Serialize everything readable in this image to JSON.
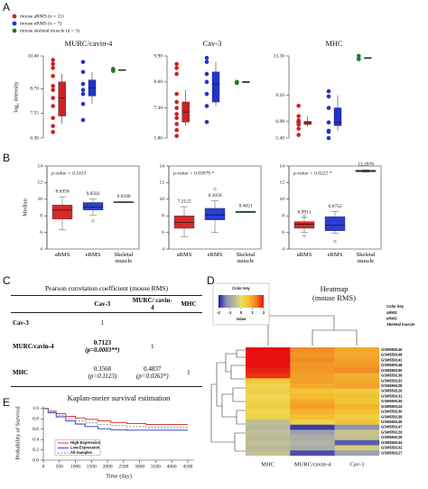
{
  "panel_labels": [
    "A",
    "B",
    "C",
    "D",
    "E"
  ],
  "group_legend": [
    {
      "label": "mouse aRMS (n = 11)",
      "color": "#cc2222"
    },
    {
      "label": "mouse eRMS (n = 7)",
      "color": "#2233cc"
    },
    {
      "label": "mouse skeletal muscle (n = 3)",
      "color": "#1c7a2c"
    }
  ],
  "chart_data": [
    {
      "type": "dotbox",
      "title": "MURC/cavin-4",
      "ylabel": "log₂ intensity",
      "ylim": [
        6.3,
        10.4
      ],
      "yticks": [
        {
          "value": 6.3,
          "label": "6.30"
        },
        {
          "value": 7.55,
          "label": "7.55"
        },
        {
          "value": 8.76,
          "label": "8.76"
        },
        {
          "value": 10.4,
          "label": "10.40"
        }
      ],
      "groups": [
        {
          "color": "#cc2222",
          "values": [
            6.6,
            6.9,
            7.3,
            7.9,
            8.3,
            8.7,
            8.9,
            9.4,
            9.8,
            10.0,
            10.2
          ],
          "box": [
            7.0,
            7.4,
            8.3,
            9.1,
            9.5
          ]
        },
        {
          "color": "#2233cc",
          "values": [
            7.2,
            8.0,
            8.5,
            8.7,
            9.0,
            9.6,
            10.1
          ],
          "box": [
            8.0,
            8.4,
            8.8,
            9.2,
            9.6
          ]
        },
        {
          "color": "#1c7a2c",
          "values": [
            9.65,
            9.75,
            9.7
          ],
          "box": [
            9.7,
            9.68,
            9.7,
            9.72,
            9.7
          ]
        }
      ]
    },
    {
      "type": "dotbox",
      "title": "Cav-3",
      "ylim": [
        5.8,
        9.9
      ],
      "yticks": [
        {
          "value": 5.8,
          "label": "5.80"
        },
        {
          "value": 7.3,
          "label": "7.30"
        },
        {
          "value": 8.6,
          "label": "8.60"
        },
        {
          "value": 9.9,
          "label": "9.90"
        }
      ],
      "groups": [
        {
          "color": "#cc2222",
          "values": [
            5.9,
            6.2,
            6.5,
            6.8,
            7.0,
            7.3,
            7.6,
            8.0,
            9.0,
            9.3,
            9.5
          ],
          "box": [
            6.4,
            6.6,
            7.1,
            7.6,
            8.2
          ]
        },
        {
          "color": "#2233cc",
          "values": [
            6.6,
            7.4,
            8.0,
            8.6,
            9.0,
            9.6,
            9.8
          ],
          "box": [
            7.4,
            7.6,
            8.5,
            9.1,
            9.6
          ]
        },
        {
          "color": "#1c7a2c",
          "values": [
            8.55,
            8.6,
            8.6
          ],
          "box": [
            8.6,
            8.58,
            8.6,
            8.62,
            8.6
          ]
        }
      ]
    },
    {
      "type": "dotbox",
      "title": "MHC",
      "ylim": [
        5.4,
        13.3
      ],
      "yticks": [
        {
          "value": 5.4,
          "label": "5.40"
        },
        {
          "value": 6.98,
          "label": "6.98"
        },
        {
          "value": 9.5,
          "label": "9.50"
        },
        {
          "value": 13.3,
          "label": "13.30"
        }
      ],
      "groups": [
        {
          "color": "#cc2222",
          "values": [
            5.7,
            6.3,
            6.7,
            6.9,
            6.9,
            6.9,
            6.9,
            7.0,
            7.1,
            7.5,
            8.5
          ],
          "box": [
            6.5,
            6.7,
            6.9,
            7.0,
            7.5
          ]
        },
        {
          "color": "#2233cc",
          "values": [
            5.4,
            6.0,
            6.1,
            6.9,
            8.3,
            9.4,
            9.9
          ],
          "box": [
            6.1,
            6.6,
            6.9,
            8.3,
            9.5
          ]
        },
        {
          "color": "#1c7a2c",
          "values": [
            13.3,
            13.0,
            13.0
          ],
          "box": [
            13.1,
            13.05,
            13.1,
            13.15,
            13.1
          ]
        }
      ]
    },
    {
      "type": "box",
      "annotation": "p-value = 0.1013",
      "ylabel": "Median",
      "ylim": [
        4,
        14
      ],
      "yticks": [
        4,
        6,
        8,
        10,
        12,
        14
      ],
      "categories": [
        "aRMS",
        "eRMS",
        "Skeletal muscle"
      ],
      "groups": [
        {
          "color": "#d42a2a",
          "low": 6.3,
          "q1": 7.6,
          "median": 8.6958,
          "median_label": "8.6958",
          "q3": 9.3,
          "high": 10.3,
          "outliers": []
        },
        {
          "color": "#2a3fd4",
          "low": 8.1,
          "q1": 8.7,
          "median": 9.0502,
          "median_label": "9.0502",
          "q3": 9.6,
          "high": 10.0,
          "outliers": [
            7.4
          ]
        },
        {
          "color": "#1c7a2c",
          "low": 9.62,
          "q1": 9.62,
          "median": 9.659,
          "median_label": "9.6590",
          "q3": 9.7,
          "high": 9.7,
          "outliers": []
        }
      ]
    },
    {
      "type": "box",
      "annotation": "p-value = 0.03979 *",
      "ylim": [
        4,
        14
      ],
      "yticks": [
        4,
        6,
        8,
        10,
        12,
        14
      ],
      "categories": [
        "aRMS",
        "eRMS",
        "Skeletal muscle"
      ],
      "groups": [
        {
          "color": "#d42a2a",
          "low": 5.5,
          "q1": 6.5,
          "median": 7.2122,
          "median_label": "7.2122",
          "q3": 8.0,
          "high": 9.1,
          "outliers": []
        },
        {
          "color": "#2a3fd4",
          "low": 6.0,
          "q1": 7.5,
          "median": 8.1056,
          "median_label": "8.1056",
          "q3": 8.9,
          "high": 9.8,
          "outliers": [
            11.2
          ]
        },
        {
          "color": "#1c7a2c",
          "low": 8.44,
          "q1": 8.44,
          "median": 8.4821,
          "median_label": "8.4821",
          "q3": 8.52,
          "high": 8.52,
          "outliers": []
        }
      ]
    },
    {
      "type": "box",
      "annotation": "p-value = 0.0222 *",
      "ylim": [
        4,
        14
      ],
      "yticks": [
        4,
        6,
        8,
        10,
        12,
        14
      ],
      "categories": [
        "aRMS",
        "eRMS",
        "Skeletal muscle"
      ],
      "groups": [
        {
          "color": "#d42a2a",
          "low": 6.0,
          "q1": 6.5,
          "median": 6.9911,
          "median_label": "6.9911",
          "q3": 7.3,
          "high": 7.8,
          "outliers": [
            5.6,
            8.0
          ]
        },
        {
          "color": "#2a3fd4",
          "low": 5.9,
          "q1": 6.2,
          "median": 6.8752,
          "median_label": "6.8752",
          "q3": 7.9,
          "high": 8.5,
          "outliers": [
            4.9
          ]
        },
        {
          "color": "#1c7a2c",
          "low": 13.25,
          "q1": 13.3,
          "median": 13.3978,
          "median_label": "13.3978",
          "q3": 13.5,
          "high": 13.55,
          "outliers": []
        }
      ]
    },
    {
      "type": "step",
      "title": "Kaplan-meier survival estimation",
      "xlabel": "Time (day)",
      "ylabel": "Probability of Survival",
      "xlim": [
        0,
        4700
      ],
      "xticks": [
        0,
        500,
        1000,
        1500,
        2000,
        2500,
        3000,
        3500,
        4000,
        4500
      ],
      "ylim": [
        0,
        1.05
      ],
      "yticks": [
        {
          "value": 0,
          "label": "0.0"
        },
        0.2,
        0.4,
        0.6,
        0.8,
        {
          "value": 1,
          "label": "1.0"
        }
      ],
      "series": [
        {
          "name": "High-Expression",
          "color": "#d42020",
          "x": [
            0,
            150,
            400,
            700,
            1000,
            1300,
            1700,
            2100,
            2600,
            3200,
            4500
          ],
          "values": [
            1,
            0.95,
            0.9,
            0.85,
            0.82,
            0.79,
            0.76,
            0.73,
            0.71,
            0.69,
            0.69
          ]
        },
        {
          "name": "Low-Expression",
          "color": "#2030c8",
          "x": [
            0,
            150,
            400,
            700,
            1000,
            1300,
            1700,
            2100,
            2600,
            3200,
            4500
          ],
          "values": [
            1,
            0.92,
            0.84,
            0.76,
            0.7,
            0.65,
            0.61,
            0.59,
            0.58,
            0.58,
            0.58
          ]
        },
        {
          "name": "All-Samples",
          "color": "#888888",
          "x": [
            0,
            150,
            400,
            700,
            1000,
            1300,
            1700,
            2100,
            2600,
            3200,
            4500
          ],
          "values": [
            1,
            0.94,
            0.87,
            0.8,
            0.76,
            0.72,
            0.69,
            0.67,
            0.65,
            0.64,
            0.64
          ]
        }
      ]
    },
    {
      "type": "heatmap",
      "title": "Heatmap",
      "subtitle": "(mouse RMS)",
      "columns": [
        "MHC",
        "MURC/cavin-4",
        "Cav-3"
      ],
      "rows": [
        "GSM559140",
        "GSM559146",
        "GSM559141",
        "GSM559148",
        "GSM559150",
        "GSM559139",
        "GSM559133",
        "GSM559128",
        "GSM559126",
        "GSM559131",
        "GSM559135",
        "GSM559124",
        "GSM559130",
        "GSM559136",
        "GSM559145",
        "GSM559147",
        "GSM559129",
        "GSM559125",
        "GSM559144",
        "GSM559132",
        "GSM559127"
      ],
      "row_groups": [
        2,
        2,
        2,
        1,
        1,
        0,
        0,
        0,
        0,
        1,
        1,
        0,
        0,
        0,
        0,
        1,
        0,
        0,
        1,
        0,
        0
      ],
      "values": [
        [
          2,
          1.2,
          0.9
        ],
        [
          2,
          1.1,
          0.9
        ],
        [
          2,
          1.2,
          1.0
        ],
        [
          2,
          1.1,
          1.1
        ],
        [
          1.9,
          1.1,
          1.2
        ],
        [
          1.8,
          1.0,
          0.8
        ],
        [
          0.5,
          1.0,
          0.9
        ],
        [
          0.3,
          0.9,
          1.0
        ],
        [
          0.4,
          0.6,
          0.5
        ],
        [
          0.2,
          0.7,
          0.6
        ],
        [
          0.3,
          0.9,
          0.6
        ],
        [
          0.4,
          1.0,
          0.8
        ],
        [
          0.2,
          0.8,
          0.6
        ],
        [
          0.3,
          0.7,
          0.4
        ],
        [
          -0.5,
          0.3,
          0.6
        ],
        [
          -0.6,
          -1.8,
          -1.2
        ],
        [
          -0.5,
          -1.0,
          -0.4
        ],
        [
          -0.6,
          -0.8,
          -0.5
        ],
        [
          -0.5,
          -0.7,
          -1.6
        ],
        [
          -0.6,
          -0.8,
          -0.3
        ],
        [
          -0.5,
          -1.7,
          -1.0
        ]
      ],
      "color_key": {
        "title": "Color Key",
        "label": "Value",
        "range": [
          -2,
          2
        ],
        "ticks": [
          -2,
          -1,
          0,
          1,
          2
        ],
        "colors": [
          "#1a1aa0",
          "#8a8ab8",
          "#b4b4a4",
          "#e8e060",
          "#f5c030",
          "#f08020",
          "#e81010"
        ]
      },
      "legend": {
        "title": "Color key",
        "entries": [
          {
            "name": "aRMS",
            "color": "#e41a1c"
          },
          {
            "name": "eRMS",
            "color": "#1f1fcf"
          },
          {
            "name": "Skeletal muscle",
            "color": "#1a9a1a"
          }
        ]
      }
    }
  ],
  "table": {
    "title": "Pearson correlation coefficient (mouse RMS)",
    "header": [
      "Cav-3",
      "MURC/ cavin-4",
      "MHC"
    ],
    "rows": [
      {
        "label": "Cav-3",
        "cells": [
          {
            "r": "1"
          }
        ]
      },
      {
        "label": "MURC/cavin-4",
        "cells": [
          {
            "r": "0.7123",
            "p": "(p=0.0003**)"
          },
          {
            "r": "1"
          }
        ]
      },
      {
        "label": "MHC",
        "cells": [
          {
            "r": "0.3568",
            "p": "(p=0.1123)"
          },
          {
            "r": "0.4837",
            "p": "(p=0.0263*)"
          },
          {
            "r": "1"
          }
        ]
      }
    ]
  }
}
